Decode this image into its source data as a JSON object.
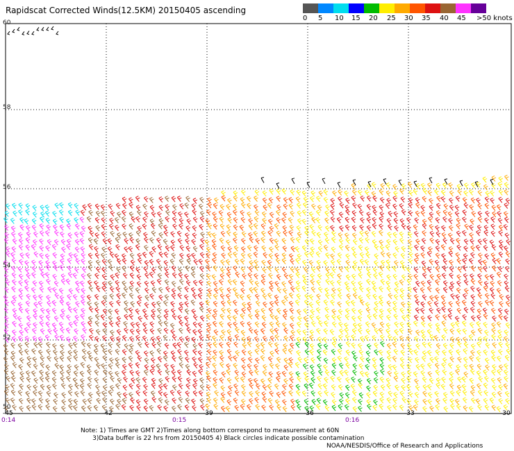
{
  "title": "Rapidscat Corrected Winds(12.5KM) 20150405 ascending",
  "legend": {
    "labels": [
      "0",
      "5",
      "10",
      "15",
      "20",
      "25",
      "30",
      "35",
      "40",
      "45",
      ">50 knots"
    ],
    "colors": [
      "#555555",
      "#0088ff",
      "#00ddee",
      "#0000ff",
      "#00bb00",
      "#ffee00",
      "#ffaa00",
      "#ff5500",
      "#dd1111",
      "#996633",
      "#ff33ff",
      "#660099"
    ]
  },
  "latitudes": [
    "60",
    "58",
    "56",
    "54",
    "52",
    "50"
  ],
  "longitudes": [
    "-45",
    "-42",
    "-39",
    "-36",
    "-33",
    "-30"
  ],
  "times": [
    "0:14",
    "0:15",
    "0:16"
  ],
  "notes": "Note: 1) Times are GMT 2)Times along bottom correspond to measurement at 60N\n      3)Data buffer is 22 hrs from 20150405 4) Black circles indicate possible contamination",
  "credit": "NOAA/NESDIS/Office of Research and Applications"
}
